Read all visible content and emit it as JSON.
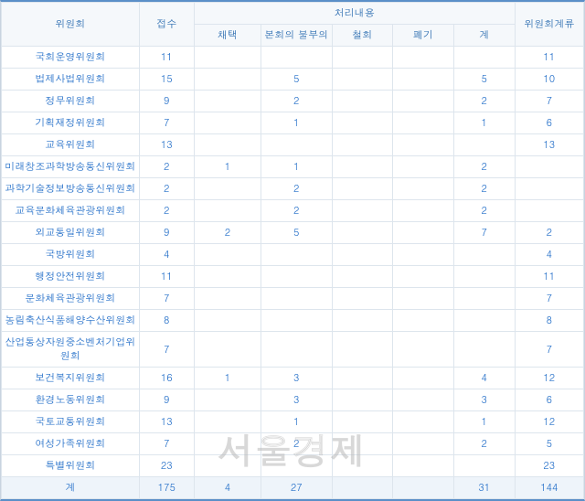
{
  "table": {
    "header": {
      "committee": "위원회",
      "received": "접수",
      "processing_group": "처리내용",
      "adopted": "채택",
      "plenary": "본회의 불부의",
      "withdrawn": "철회",
      "discarded": "폐기",
      "subtotal": "계",
      "pending": "위원회계류"
    },
    "rows": [
      {
        "name": "국회운영위원회",
        "received": "11",
        "adopted": "",
        "plenary": "",
        "withdrawn": "",
        "discarded": "",
        "subtotal": "",
        "pending": "11"
      },
      {
        "name": "법제사법위원회",
        "received": "15",
        "adopted": "",
        "plenary": "5",
        "withdrawn": "",
        "discarded": "",
        "subtotal": "5",
        "pending": "10"
      },
      {
        "name": "정무위원회",
        "received": "9",
        "adopted": "",
        "plenary": "2",
        "withdrawn": "",
        "discarded": "",
        "subtotal": "2",
        "pending": "7"
      },
      {
        "name": "기획재정위원회",
        "received": "7",
        "adopted": "",
        "plenary": "1",
        "withdrawn": "",
        "discarded": "",
        "subtotal": "1",
        "pending": "6"
      },
      {
        "name": "교육위원회",
        "received": "13",
        "adopted": "",
        "plenary": "",
        "withdrawn": "",
        "discarded": "",
        "subtotal": "",
        "pending": "13"
      },
      {
        "name": "미래창조과학방송통신위원회",
        "received": "2",
        "adopted": "1",
        "plenary": "1",
        "withdrawn": "",
        "discarded": "",
        "subtotal": "2",
        "pending": ""
      },
      {
        "name": "과학기술정보방송통신위원회",
        "received": "2",
        "adopted": "",
        "plenary": "2",
        "withdrawn": "",
        "discarded": "",
        "subtotal": "2",
        "pending": ""
      },
      {
        "name": "교육문화체육관광위원회",
        "received": "2",
        "adopted": "",
        "plenary": "2",
        "withdrawn": "",
        "discarded": "",
        "subtotal": "2",
        "pending": ""
      },
      {
        "name": "외교통일위원회",
        "received": "9",
        "adopted": "2",
        "plenary": "5",
        "withdrawn": "",
        "discarded": "",
        "subtotal": "7",
        "pending": "2"
      },
      {
        "name": "국방위원회",
        "received": "4",
        "adopted": "",
        "plenary": "",
        "withdrawn": "",
        "discarded": "",
        "subtotal": "",
        "pending": "4"
      },
      {
        "name": "행정안전위원회",
        "received": "11",
        "adopted": "",
        "plenary": "",
        "withdrawn": "",
        "discarded": "",
        "subtotal": "",
        "pending": "11"
      },
      {
        "name": "문화체육관광위원회",
        "received": "7",
        "adopted": "",
        "plenary": "",
        "withdrawn": "",
        "discarded": "",
        "subtotal": "",
        "pending": "7"
      },
      {
        "name": "농림축산식품해양수산위원회",
        "received": "8",
        "adopted": "",
        "plenary": "",
        "withdrawn": "",
        "discarded": "",
        "subtotal": "",
        "pending": "8"
      },
      {
        "name": "산업통상자원중소벤처기업위원회",
        "received": "7",
        "adopted": "",
        "plenary": "",
        "withdrawn": "",
        "discarded": "",
        "subtotal": "",
        "pending": "7"
      },
      {
        "name": "보건복지위원회",
        "received": "16",
        "adopted": "1",
        "plenary": "3",
        "withdrawn": "",
        "discarded": "",
        "subtotal": "4",
        "pending": "12"
      },
      {
        "name": "환경노동위원회",
        "received": "9",
        "adopted": "",
        "plenary": "3",
        "withdrawn": "",
        "discarded": "",
        "subtotal": "3",
        "pending": "6"
      },
      {
        "name": "국토교통위원회",
        "received": "13",
        "adopted": "",
        "plenary": "1",
        "withdrawn": "",
        "discarded": "",
        "subtotal": "1",
        "pending": "12"
      },
      {
        "name": "여성가족위원회",
        "received": "7",
        "adopted": "",
        "plenary": "2",
        "withdrawn": "",
        "discarded": "",
        "subtotal": "2",
        "pending": "5"
      },
      {
        "name": "특별위원회",
        "received": "23",
        "adopted": "",
        "plenary": "",
        "withdrawn": "",
        "discarded": "",
        "subtotal": "",
        "pending": "23"
      }
    ],
    "total": {
      "name": "계",
      "received": "175",
      "adopted": "4",
      "plenary": "27",
      "withdrawn": "",
      "discarded": "",
      "subtotal": "31",
      "pending": "144"
    },
    "col_widths": {
      "committee": "140",
      "received": "56",
      "adopted": "68",
      "plenary": "72",
      "withdrawn": "62",
      "discarded": "62",
      "subtotal": "62",
      "pending": "70"
    },
    "colors": {
      "border_top": "#5a8fc8",
      "header_bg": "#f5f8fb",
      "header_text": "#2b6cb0",
      "cell_border": "#dde5ed",
      "cell_text": "#1e6bc7",
      "total_bg": "#eef4fa"
    }
  },
  "watermark": "서울경제"
}
